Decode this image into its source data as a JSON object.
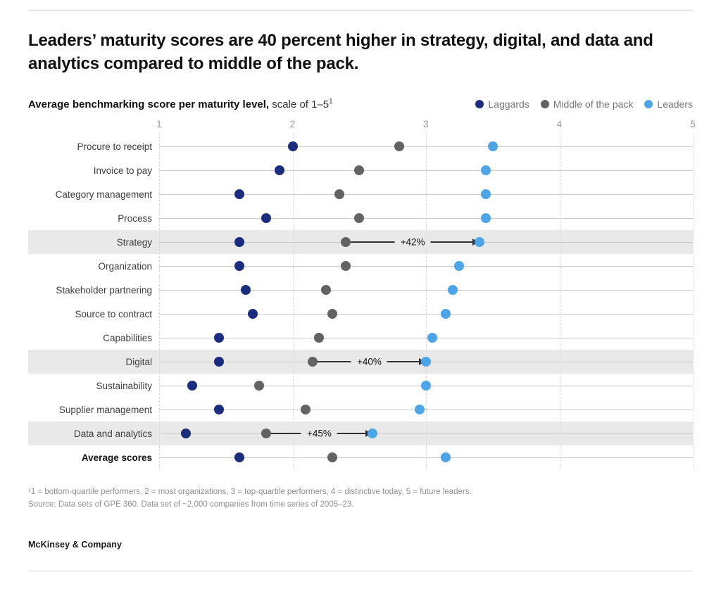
{
  "page": {
    "title": "Leaders’ maturity scores are 40 percent higher in strategy, digital, and data and analytics compared to middle of the pack.",
    "subtitle_bold": "Average benchmarking score per maturity level,",
    "subtitle_rest": " scale of 1–5",
    "subtitle_superscript": "1",
    "footnote_line1": "¹1 = bottom-quartile performers, 2 = most organizations, 3 = top-quartile performers, 4 = distinctive today, 5 = future leaders.",
    "footnote_line2": "Source: Data sets of GPE 360. Data set of ~2,000 companies from time series of 2005–23.",
    "brand": "McKinsey & Company"
  },
  "colors": {
    "laggards": "#1B2D7F",
    "middle": "#636363",
    "leaders": "#4BA5E8",
    "highlight_band": "#E9E9E9",
    "row_line": "#CBCBCB",
    "gridline": "#DCDCDC",
    "arrow": "#333333"
  },
  "chart_data": {
    "type": "scatter",
    "title": "Average benchmarking score per maturity level, scale of 1–5",
    "xlabel": "",
    "ylabel": "",
    "xlim": [
      1,
      5
    ],
    "x_ticks": [
      "1",
      "2",
      "3",
      "4",
      "5"
    ],
    "grid": "vertical-dashed",
    "legend_position": "top-right",
    "series": [
      {
        "name": "Laggards",
        "color": "#1B2D7F"
      },
      {
        "name": "Middle of the pack",
        "color": "#636363"
      },
      {
        "name": "Leaders",
        "color": "#4BA5E8"
      }
    ],
    "rows": [
      {
        "category": "Procure to receipt",
        "values": [
          2.0,
          2.8,
          3.5
        ]
      },
      {
        "category": "Invoice to pay",
        "values": [
          1.9,
          2.5,
          3.45
        ]
      },
      {
        "category": "Category management",
        "values": [
          1.6,
          2.35,
          3.45
        ]
      },
      {
        "category": "Process",
        "values": [
          1.8,
          2.5,
          3.45
        ]
      },
      {
        "category": "Strategy",
        "values": [
          1.6,
          2.4,
          3.4
        ],
        "highlight": true,
        "delta_label": "+42%"
      },
      {
        "category": "Organization",
        "values": [
          1.6,
          2.4,
          3.25
        ]
      },
      {
        "category": "Stakeholder partnering",
        "values": [
          1.65,
          2.25,
          3.2
        ]
      },
      {
        "category": "Source to contract",
        "values": [
          1.7,
          2.3,
          3.15
        ]
      },
      {
        "category": "Capabilities",
        "values": [
          1.45,
          2.2,
          3.05
        ]
      },
      {
        "category": "Digital",
        "values": [
          1.45,
          2.15,
          3.0
        ],
        "highlight": true,
        "delta_label": "+40%"
      },
      {
        "category": "Sustainability",
        "values": [
          1.25,
          1.75,
          3.0
        ]
      },
      {
        "category": "Supplier management",
        "values": [
          1.45,
          2.1,
          2.95
        ]
      },
      {
        "category": "Data and analytics",
        "values": [
          1.2,
          1.8,
          2.6
        ],
        "highlight": true,
        "delta_label": "+45%"
      },
      {
        "category": "Average scores",
        "values": [
          1.6,
          2.3,
          3.15
        ],
        "bold": true
      }
    ]
  }
}
